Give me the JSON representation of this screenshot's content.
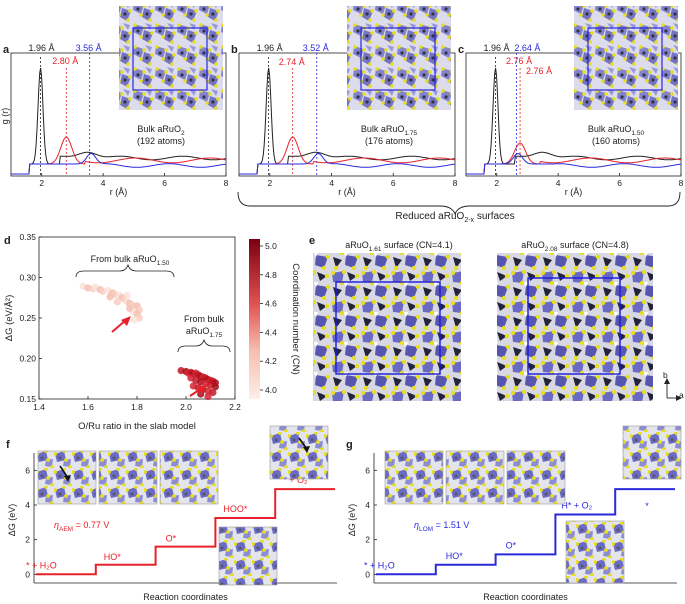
{
  "colors": {
    "black": "#222222",
    "red": "#e8202a",
    "blue": "#2a2adc",
    "atom_yellow": "#e8e020",
    "poly_violet": "#6f6fc8",
    "poly_dark": "#2a2a44"
  },
  "panel_labels": {
    "a": "a",
    "b": "b",
    "c": "c",
    "d": "d",
    "e": "e",
    "f": "f",
    "g": "g"
  },
  "rdf": {
    "ylabel": "g (r)",
    "xlabel": "r (Å)",
    "xticks": [
      "2",
      "4",
      "6",
      "8"
    ],
    "panels": [
      {
        "peak1": "1.96 Å",
        "peak_red": "2.80 Å",
        "peak_blue": "3.56 Å",
        "name": "Bulk aRuO",
        "sub": "2",
        "atoms": "(192 atoms)",
        "red_r": 2.8,
        "blue_r": 3.56
      },
      {
        "peak1": "1.96 Å",
        "peak_red": "2.74 Å",
        "peak_blue": "3.52 Å",
        "name": "Bulk aRuO",
        "sub": "1.75",
        "atoms": "(176 atoms)",
        "red_r": 2.74,
        "blue_r": 3.52
      },
      {
        "peak1": "1.96 Å",
        "peak_red": "2.76 Å",
        "peak_blue": "2.64 Å",
        "name": "Bulk aRuO",
        "sub": "1.50",
        "atoms": "(160 atoms)",
        "red_r": 2.76,
        "blue_r": 2.64
      }
    ],
    "brace_label": "Reduced aRuO",
    "brace_sub": "2-x",
    "brace_tail": " surfaces"
  },
  "panel_d": {
    "ylabel": "ΔG (eV/Å²)",
    "xlabel": "O/Ru ratio in the slab model",
    "xticks": [
      "1.4",
      "1.6",
      "1.8",
      "2.0",
      "2.2"
    ],
    "yticks": [
      "0.15",
      "0.20",
      "0.25",
      "0.30",
      "0.35"
    ],
    "xlim": [
      1.4,
      2.2
    ],
    "ylim": [
      0.15,
      0.35
    ],
    "cbar_label": "Coordination number (CN)",
    "cbar_ticks": [
      "4.0",
      "4.2",
      "4.4",
      "4.6",
      "4.8",
      "5.0"
    ],
    "group1_label": "From bulk aRuO",
    "group1_sub": "1.50",
    "group2_label_line1": "From bulk",
    "group2_label_line2": "aRuO",
    "group2_sub": "1.75"
  },
  "chart_data": {
    "type": "scatter",
    "title": "",
    "xlabel": "O/Ru ratio in the slab model",
    "ylabel": "ΔG (eV/Å²)",
    "xlim": [
      1.4,
      2.2
    ],
    "ylim": [
      0.15,
      0.35
    ],
    "color_by": "Coordination number (CN)",
    "series": [
      {
        "name": "From bulk aRuO1.50",
        "points": [
          [
            1.58,
            0.289
          ],
          [
            1.6,
            0.287
          ],
          [
            1.62,
            0.286
          ],
          [
            1.63,
            0.288
          ],
          [
            1.65,
            0.285
          ],
          [
            1.66,
            0.283
          ],
          [
            1.68,
            0.284
          ],
          [
            1.7,
            0.281
          ],
          [
            1.71,
            0.279
          ],
          [
            1.73,
            0.278
          ],
          [
            1.74,
            0.275
          ],
          [
            1.75,
            0.273
          ],
          [
            1.76,
            0.27
          ],
          [
            1.77,
            0.268
          ],
          [
            1.78,
            0.266
          ],
          [
            1.79,
            0.262
          ],
          [
            1.8,
            0.265
          ],
          [
            1.81,
            0.26
          ],
          [
            1.76,
            0.278
          ],
          [
            1.69,
            0.276
          ],
          [
            1.72,
            0.27
          ],
          [
            1.78,
            0.258
          ],
          [
            1.8,
            0.255
          ],
          [
            1.81,
            0.25
          ],
          [
            1.79,
            0.248
          ],
          [
            1.77,
            0.262
          ]
        ]
      },
      {
        "name": "From bulk aRuO1.75",
        "points": [
          [
            1.98,
            0.185
          ],
          [
            2.0,
            0.184
          ],
          [
            2.01,
            0.182
          ],
          [
            2.02,
            0.183
          ],
          [
            2.03,
            0.181
          ],
          [
            2.04,
            0.182
          ],
          [
            2.05,
            0.18
          ],
          [
            2.06,
            0.178
          ],
          [
            2.07,
            0.177
          ],
          [
            2.08,
            0.176
          ],
          [
            2.09,
            0.174
          ],
          [
            2.1,
            0.173
          ],
          [
            2.11,
            0.172
          ],
          [
            2.12,
            0.17
          ],
          [
            2.02,
            0.176
          ],
          [
            2.04,
            0.173
          ],
          [
            2.06,
            0.171
          ],
          [
            2.08,
            0.169
          ],
          [
            2.1,
            0.167
          ],
          [
            2.12,
            0.165
          ],
          [
            2.03,
            0.166
          ],
          [
            2.05,
            0.164
          ],
          [
            2.07,
            0.162
          ],
          [
            2.09,
            0.16
          ],
          [
            2.11,
            0.158
          ],
          [
            2.06,
            0.156
          ],
          [
            2.09,
            0.153
          ]
        ]
      }
    ]
  },
  "panel_e": {
    "left_title": "aRuO",
    "left_sub": "1.61",
    "left_tail": " surface (CN=4.1)",
    "right_title": "aRuO",
    "right_sub": "2.08",
    "right_tail": " surface (CN=4.8)",
    "axis_b": "b",
    "axis_a": "a"
  },
  "panel_f": {
    "ylabel": "ΔG (eV)",
    "xlabel": "Reaction coordinates",
    "yticks": [
      "0",
      "2",
      "4",
      "6"
    ],
    "eta_sym": "η",
    "eta_sub": "AEM",
    "eta_val": " = 0.77 V",
    "steps": [
      "* + H₂O",
      "HO*",
      "O*",
      "HOO*",
      "* + O₂"
    ],
    "energies": [
      0,
      0.55,
      1.6,
      3.25,
      4.92
    ]
  },
  "panel_g": {
    "ylabel": "ΔG (eV)",
    "xlabel": "Reaction coordinates",
    "yticks": [
      "0",
      "2",
      "4",
      "6"
    ],
    "eta_sym": "η",
    "eta_sub": "LOM",
    "eta_val": " = 1.51 V",
    "steps": [
      "* + H₂O",
      "HO*",
      "O*",
      "H* + O₂",
      "*"
    ],
    "energies": [
      0,
      0.55,
      1.15,
      3.45,
      4.92
    ]
  }
}
